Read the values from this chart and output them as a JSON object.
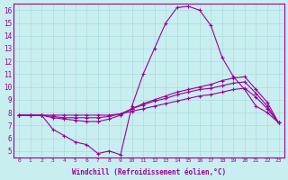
{
  "background_color": "#c8eef0",
  "grid_color": "#aadddd",
  "line_color": "#990099",
  "marker": "+",
  "xlim": [
    -0.5,
    23.5
  ],
  "ylim": [
    4.5,
    16.5
  ],
  "xlabel": "Windchill (Refroidissement éolien,°C)",
  "xticks": [
    0,
    1,
    2,
    3,
    4,
    5,
    6,
    7,
    8,
    9,
    10,
    11,
    12,
    13,
    14,
    15,
    16,
    17,
    18,
    19,
    20,
    21,
    22,
    23
  ],
  "yticks": [
    5,
    6,
    7,
    8,
    9,
    10,
    11,
    12,
    13,
    14,
    15,
    16
  ],
  "series": [
    [
      7.8,
      7.8,
      7.8,
      6.7,
      6.2,
      5.7,
      5.5,
      4.8,
      5.0,
      4.7,
      8.5,
      11.0,
      13.0,
      15.0,
      16.2,
      16.3,
      16.0,
      14.8,
      12.3,
      10.8,
      9.8,
      8.5,
      8.0,
      7.2
    ],
    [
      7.8,
      7.8,
      7.8,
      7.6,
      7.5,
      7.4,
      7.3,
      7.3,
      7.5,
      7.8,
      8.3,
      8.7,
      9.0,
      9.3,
      9.6,
      9.8,
      10.0,
      10.2,
      10.5,
      10.7,
      10.8,
      9.8,
      8.8,
      7.2
    ],
    [
      7.8,
      7.8,
      7.8,
      7.7,
      7.6,
      7.6,
      7.6,
      7.6,
      7.7,
      7.9,
      8.3,
      8.6,
      8.9,
      9.1,
      9.4,
      9.6,
      9.8,
      9.9,
      10.1,
      10.3,
      10.4,
      9.5,
      8.5,
      7.2
    ],
    [
      7.8,
      7.8,
      7.8,
      7.8,
      7.8,
      7.8,
      7.8,
      7.8,
      7.8,
      7.9,
      8.1,
      8.3,
      8.5,
      8.7,
      8.9,
      9.1,
      9.3,
      9.4,
      9.6,
      9.8,
      9.9,
      9.2,
      8.3,
      7.2
    ]
  ],
  "figsize": [
    3.2,
    2.0
  ],
  "dpi": 100
}
